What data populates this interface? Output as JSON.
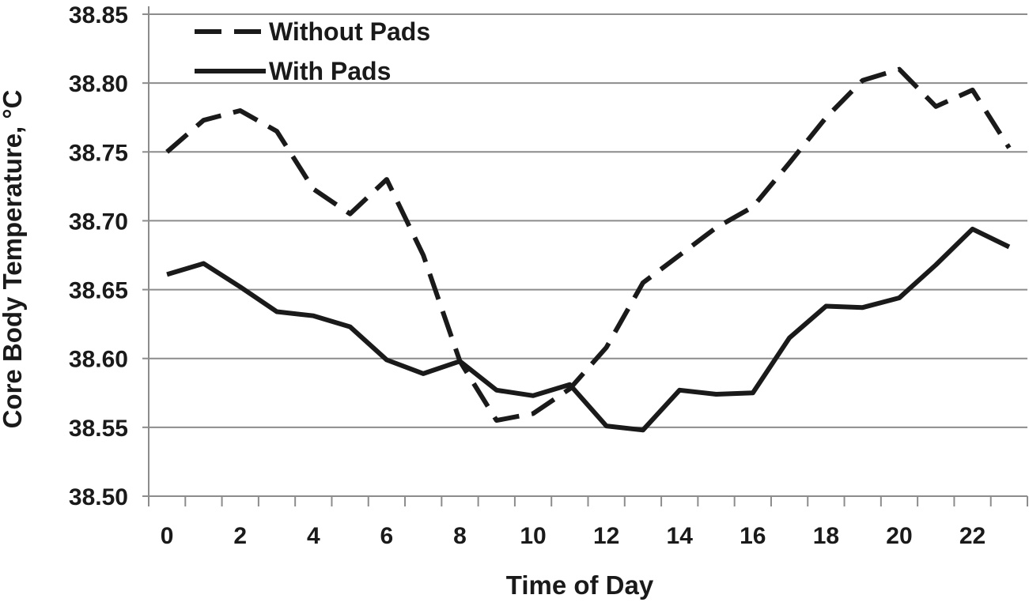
{
  "chart_data": {
    "type": "line",
    "title": "",
    "xlabel": "Time of Day",
    "ylabel": "Core Body Temperature, °C",
    "xlim": [
      -0.5,
      23.5
    ],
    "ylim": [
      38.5,
      38.85
    ],
    "yticks": [
      "38.50",
      "38.55",
      "38.60",
      "38.65",
      "38.70",
      "38.75",
      "38.80",
      "38.85"
    ],
    "xticks": [
      "0",
      "2",
      "4",
      "6",
      "8",
      "10",
      "12",
      "14",
      "16",
      "18",
      "20",
      "22"
    ],
    "grid": "horizontal",
    "legend_position": "top-left",
    "x": [
      0,
      1,
      2,
      3,
      4,
      5,
      6,
      7,
      8,
      9,
      10,
      11,
      12,
      13,
      14,
      15,
      16,
      17,
      18,
      19,
      20,
      21,
      22,
      23
    ],
    "series": [
      {
        "name": "Without Pads",
        "style": "dashed",
        "color": "#1a1a1a",
        "values": [
          38.75,
          38.773,
          38.78,
          38.765,
          38.723,
          38.705,
          38.73,
          38.675,
          38.598,
          38.555,
          38.56,
          38.578,
          38.608,
          38.655,
          38.675,
          38.695,
          38.71,
          38.742,
          38.775,
          38.802,
          38.81,
          38.783,
          38.795,
          38.753
        ]
      },
      {
        "name": "With Pads",
        "style": "solid",
        "color": "#1a1a1a",
        "values": [
          38.661,
          38.669,
          38.652,
          38.634,
          38.631,
          38.623,
          38.599,
          38.589,
          38.598,
          38.577,
          38.573,
          38.581,
          38.551,
          38.548,
          38.577,
          38.574,
          38.575,
          38.615,
          38.638,
          38.637,
          38.644,
          38.668,
          38.694,
          38.681
        ]
      }
    ]
  }
}
